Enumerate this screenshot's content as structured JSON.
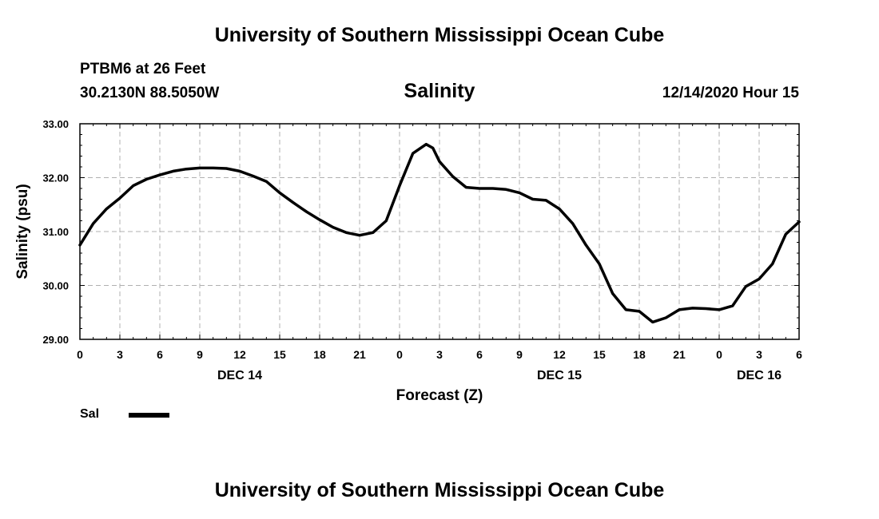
{
  "header": {
    "title": "University of Southern Mississippi Ocean Cube",
    "station": "PTBM6 at 26 Feet",
    "coords": "30.2130N 88.5050W",
    "subtitle": "Salinity",
    "datetime": "12/14/2020 Hour 15"
  },
  "footer": {
    "title": "University of Southern Mississippi Ocean Cube"
  },
  "legend": {
    "label": "Sal",
    "color": "#000000"
  },
  "chart_data": {
    "type": "line",
    "title": "Salinity",
    "xlabel": "Forecast (Z)",
    "ylabel": "Salinity (psu)",
    "xlim": [
      0,
      54
    ],
    "ylim": [
      29.0,
      33.0
    ],
    "yticks": [
      "29.00",
      "30.00",
      "31.00",
      "32.00",
      "33.00"
    ],
    "xticks": [
      "0",
      "3",
      "6",
      "9",
      "12",
      "15",
      "18",
      "21",
      "0",
      "3",
      "6",
      "9",
      "12",
      "15",
      "18",
      "21",
      "0",
      "3",
      "6"
    ],
    "day_labels": [
      {
        "label": "DEC 14",
        "hour": 12
      },
      {
        "label": "DEC 15",
        "hour": 36
      },
      {
        "label": "DEC 16",
        "hour": 51
      }
    ],
    "grid": true,
    "legend_position": "bottom-left",
    "series": [
      {
        "name": "Sal",
        "color": "#000000",
        "x": [
          0,
          1,
          2,
          3,
          4,
          5,
          6,
          7,
          8,
          9,
          10,
          11,
          12,
          13,
          14,
          15,
          16,
          17,
          18,
          19,
          20,
          21,
          22,
          23,
          24,
          25,
          26,
          26.5,
          27,
          28,
          29,
          30,
          31,
          32,
          33,
          34,
          35,
          36,
          37,
          38,
          39,
          40,
          41,
          42,
          43,
          44,
          45,
          46,
          47,
          48,
          49,
          50,
          51,
          52,
          53,
          54
        ],
        "values": [
          30.75,
          31.15,
          31.42,
          31.62,
          31.85,
          31.97,
          32.05,
          32.12,
          32.16,
          32.18,
          32.18,
          32.17,
          32.12,
          32.03,
          31.93,
          31.72,
          31.54,
          31.37,
          31.22,
          31.08,
          30.98,
          30.93,
          30.98,
          31.2,
          31.85,
          32.45,
          32.62,
          32.55,
          32.3,
          32.02,
          31.82,
          31.8,
          31.8,
          31.78,
          31.72,
          31.6,
          31.58,
          31.42,
          31.15,
          30.75,
          30.4,
          29.85,
          29.55,
          29.52,
          29.32,
          29.4,
          29.55,
          29.58,
          29.57,
          29.55,
          29.62,
          29.98,
          30.12,
          30.4,
          30.95,
          31.18
        ]
      }
    ]
  }
}
